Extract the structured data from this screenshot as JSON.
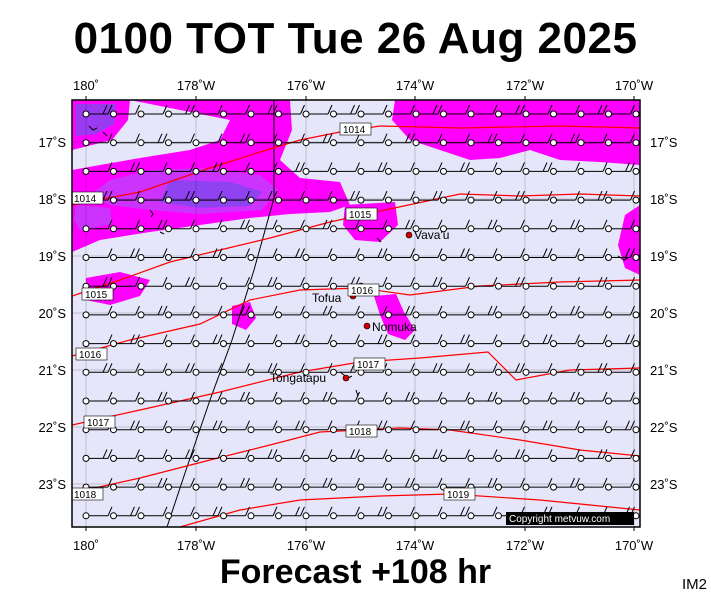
{
  "title": "0100 TOT Tue 26 Aug 2025",
  "footer": "Forecast +108 hr",
  "map_code": "IM2",
  "copyright": "Copyright metvuw.com",
  "colors": {
    "background": "#e6e6fa",
    "rain_light": "#ff00ff",
    "rain_medium": "#cc33ff",
    "rain_heavy": "#8844ee",
    "isobar": "#ff0000",
    "place_marker": "#cc0000"
  },
  "longitude_labels": [
    "180˚",
    "178˚W",
    "176˚W",
    "174˚W",
    "172˚W",
    "170˚W"
  ],
  "latitude_labels": [
    "17˚S",
    "18˚S",
    "19˚S",
    "20˚S",
    "21˚S",
    "22˚S",
    "23˚S"
  ],
  "isobar_labels": [
    "1014",
    "1014",
    "1015",
    "1015",
    "1016",
    "1016",
    "1017",
    "1017",
    "1018",
    "1018",
    "1019"
  ],
  "places": [
    {
      "name": "Vava'u"
    },
    {
      "name": "Tofua"
    },
    {
      "name": "Nomuka"
    },
    {
      "name": "Tongatapu"
    }
  ]
}
